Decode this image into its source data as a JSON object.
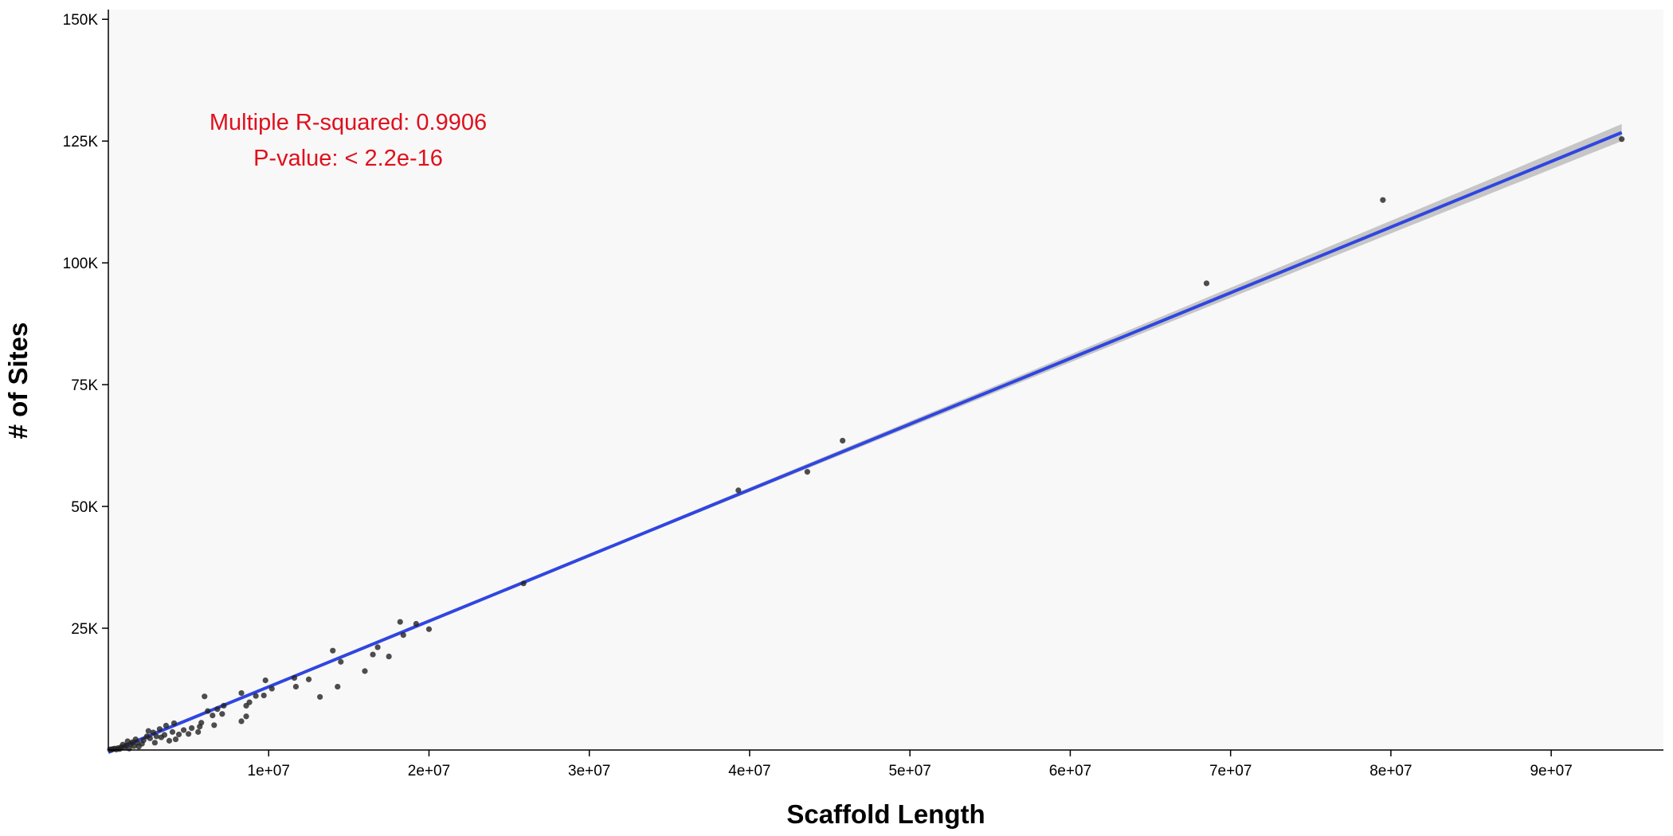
{
  "chart_data": {
    "type": "scatter",
    "title": "",
    "xlabel": "Scaffold Length",
    "ylabel": "# of Sites",
    "xlim": [
      0,
      97000000
    ],
    "ylim": [
      0,
      152000
    ],
    "x_ticks": [
      {
        "value": 10000000,
        "label": "1e+07"
      },
      {
        "value": 20000000,
        "label": "2e+07"
      },
      {
        "value": 30000000,
        "label": "3e+07"
      },
      {
        "value": 40000000,
        "label": "4e+07"
      },
      {
        "value": 50000000,
        "label": "5e+07"
      },
      {
        "value": 60000000,
        "label": "6e+07"
      },
      {
        "value": 70000000,
        "label": "7e+07"
      },
      {
        "value": 80000000,
        "label": "8e+07"
      },
      {
        "value": 90000000,
        "label": "9e+07"
      }
    ],
    "y_ticks": [
      {
        "value": 25000,
        "label": "25K"
      },
      {
        "value": 50000,
        "label": "50K"
      },
      {
        "value": 75000,
        "label": "75K"
      },
      {
        "value": 100000,
        "label": "100K"
      },
      {
        "value": 125000,
        "label": "125K"
      },
      {
        "value": 150000,
        "label": "150K"
      }
    ],
    "grid": false,
    "legend": "none",
    "colors": {
      "points": "#222222",
      "fit_line": "#3046e0",
      "confidence_band": "#bdbdbd",
      "panel_background": "#f8f8f8",
      "annotation": "#e0101d"
    },
    "annotations": [
      {
        "text": "Multiple R-squared: 0.9906"
      },
      {
        "text": "P-value: < 2.2e-16"
      }
    ],
    "fit": {
      "method": "linear",
      "x_range": [
        0,
        94400000
      ],
      "intercept": -500,
      "slope": 0.001348,
      "se_band": true
    },
    "points": [
      [
        94400000,
        125400
      ],
      [
        79500000,
        112900
      ],
      [
        68500000,
        95800
      ],
      [
        45800000,
        63500
      ],
      [
        43600000,
        57100
      ],
      [
        39300000,
        53300
      ],
      [
        25900000,
        34200
      ],
      [
        18200000,
        26300
      ],
      [
        19200000,
        25900
      ],
      [
        20000000,
        24800
      ],
      [
        18400000,
        23600
      ],
      [
        16800000,
        21100
      ],
      [
        14000000,
        20400
      ],
      [
        16500000,
        19600
      ],
      [
        17500000,
        19200
      ],
      [
        14500000,
        18100
      ],
      [
        16000000,
        16200
      ],
      [
        9800000,
        14300
      ],
      [
        11600000,
        14800
      ],
      [
        12500000,
        14500
      ],
      [
        11700000,
        13000
      ],
      [
        14300000,
        13000
      ],
      [
        10200000,
        12600
      ],
      [
        8300000,
        11700
      ],
      [
        9200000,
        11100
      ],
      [
        6000000,
        11000
      ],
      [
        13200000,
        10900
      ],
      [
        9700000,
        11200
      ],
      [
        8800000,
        9800
      ],
      [
        8600000,
        9100
      ],
      [
        7200000,
        9100
      ],
      [
        6800000,
        8400
      ],
      [
        6200000,
        8000
      ],
      [
        7100000,
        7400
      ],
      [
        6500000,
        7100
      ],
      [
        8600000,
        6900
      ],
      [
        8300000,
        5900
      ],
      [
        5800000,
        5600
      ],
      [
        6600000,
        5100
      ],
      [
        5700000,
        4800
      ],
      [
        5200000,
        4500
      ],
      [
        4700000,
        4100
      ],
      [
        4000000,
        3700
      ],
      [
        4400000,
        3200
      ],
      [
        5600000,
        3700
      ],
      [
        5000000,
        3300
      ],
      [
        3500000,
        3100
      ],
      [
        3000000,
        2800
      ],
      [
        2600000,
        2400
      ],
      [
        4200000,
        2200
      ],
      [
        3800000,
        1900
      ],
      [
        2200000,
        2000
      ],
      [
        2900000,
        1500
      ],
      [
        1800000,
        1500
      ],
      [
        1400000,
        1200
      ],
      [
        1100000,
        900
      ],
      [
        1900000,
        700
      ],
      [
        800000,
        600
      ],
      [
        600000,
        400
      ],
      [
        400000,
        300
      ],
      [
        300000,
        200
      ],
      [
        200000,
        150
      ],
      [
        100000,
        100
      ],
      [
        500000,
        100
      ],
      [
        700000,
        200
      ],
      [
        1300000,
        300
      ],
      [
        1600000,
        800
      ],
      [
        2100000,
        1300
      ],
      [
        2400000,
        2800
      ],
      [
        1700000,
        2200
      ],
      [
        3200000,
        4300
      ],
      [
        3600000,
        5000
      ],
      [
        4100000,
        5500
      ],
      [
        2800000,
        3600
      ],
      [
        3300000,
        2600
      ],
      [
        2500000,
        3900
      ],
      [
        1200000,
        1800
      ],
      [
        900000,
        1100
      ],
      [
        1000000,
        500
      ],
      [
        1500000,
        1600
      ]
    ]
  }
}
